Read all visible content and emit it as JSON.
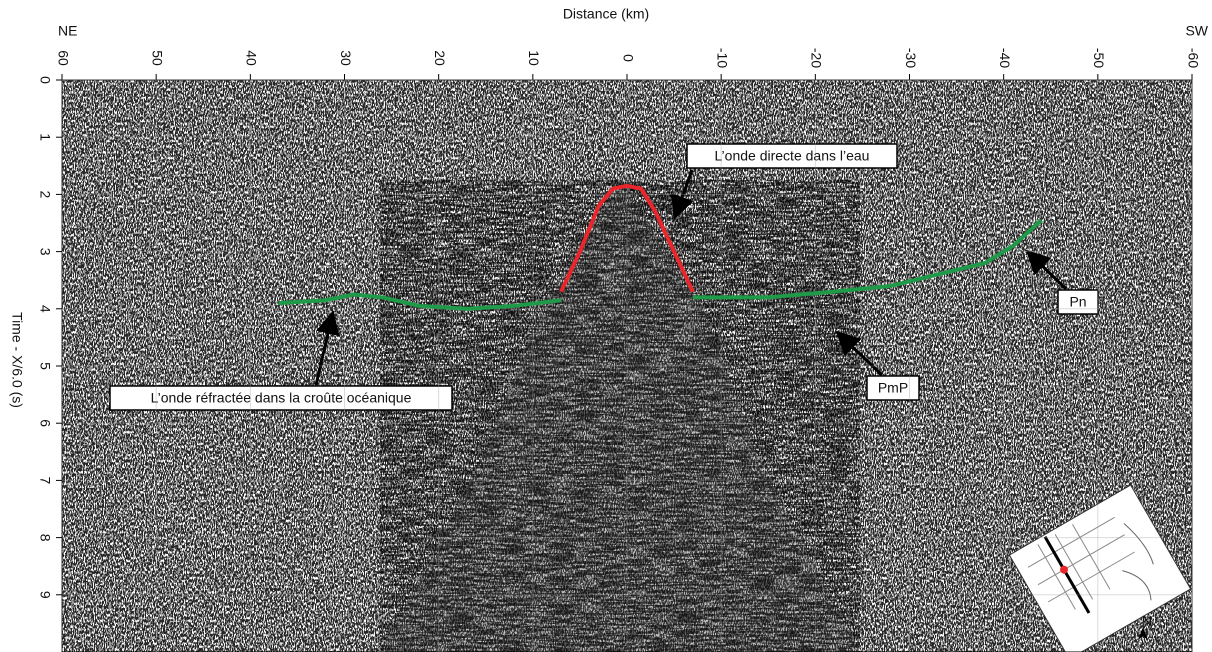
{
  "chart_data": {
    "type": "seismic",
    "title": "Distance (km)",
    "y_label": "Time - X/6.0 (s)",
    "left_label": "NE",
    "right_label": "SW",
    "xlim": [
      60,
      -60
    ],
    "xticks": [
      60,
      50,
      40,
      30,
      20,
      10,
      0,
      -10,
      -20,
      -30,
      -40,
      -50,
      -60
    ],
    "ylim": [
      0,
      10
    ],
    "yticks": [
      0,
      1,
      2,
      3,
      4,
      5,
      6,
      7,
      8,
      9
    ],
    "grid": true,
    "series": [
      {
        "color": "#e8262b",
        "x": [
          7,
          5,
          3,
          1.5,
          0,
          -1.5,
          -3,
          -5,
          -7
        ],
        "values": [
          3.7,
          3.0,
          2.2,
          1.9,
          1.85,
          1.9,
          2.3,
          3.0,
          3.7
        ]
      },
      {
        "color": "#1f9a48",
        "x": [
          37,
          32,
          29,
          26,
          22,
          17,
          12,
          7
        ],
        "values": [
          3.9,
          3.85,
          3.75,
          3.8,
          3.95,
          4.0,
          3.95,
          3.85
        ]
      },
      {
        "color": "#1f9a48",
        "x": [
          -7,
          -15,
          -22,
          -28,
          -33,
          -38,
          -41,
          -44
        ],
        "values": [
          3.8,
          3.8,
          3.7,
          3.6,
          3.4,
          3.2,
          2.9,
          2.45
        ]
      }
    ],
    "annotations": [
      "L’onde directe dans l’eau",
      "Pn",
      "PmP",
      "L’onde réfractée dans la croûte océanique"
    ]
  }
}
